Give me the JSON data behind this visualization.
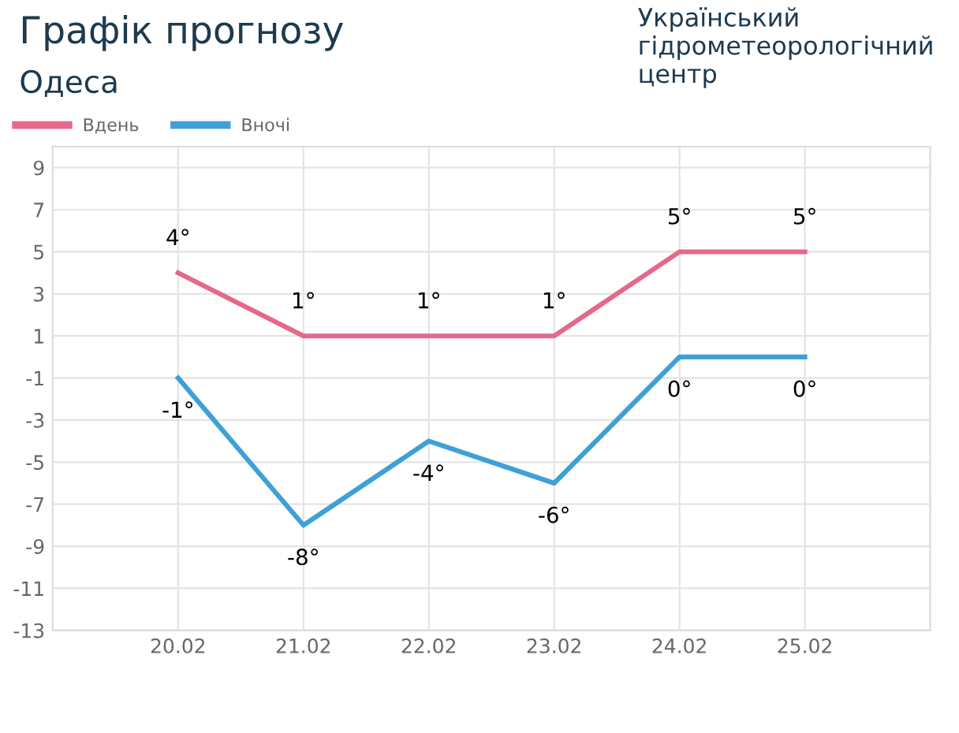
{
  "chart_data": {
    "type": "line",
    "title": "Графік прогнозу",
    "subtitle": "Одеса",
    "annotations": [
      "Український гідрометеорологічний центр"
    ],
    "categories": [
      "20.02",
      "21.02",
      "22.02",
      "23.02",
      "24.02",
      "25.02"
    ],
    "series": [
      {
        "name": "Вдень",
        "color": "#e5688a",
        "values": [
          4,
          1,
          1,
          1,
          5,
          5
        ],
        "value_labels": [
          "4°",
          "1°",
          "1°",
          "1°",
          "5°",
          "5°"
        ]
      },
      {
        "name": "Вночі",
        "color": "#3fa0d8",
        "values": [
          -1,
          -8,
          -4,
          -6,
          0,
          0
        ],
        "value_labels": [
          "-1°",
          "-8°",
          "-4°",
          "-6°",
          "0°",
          "0°"
        ]
      }
    ],
    "ylim": [
      -13,
      10
    ],
    "yticks": [
      -13,
      -11,
      -9,
      -7,
      -5,
      -3,
      -1,
      1,
      3,
      5,
      7,
      9
    ],
    "grid": true,
    "legend": "top left",
    "marker": "none",
    "line_style": "solid"
  }
}
